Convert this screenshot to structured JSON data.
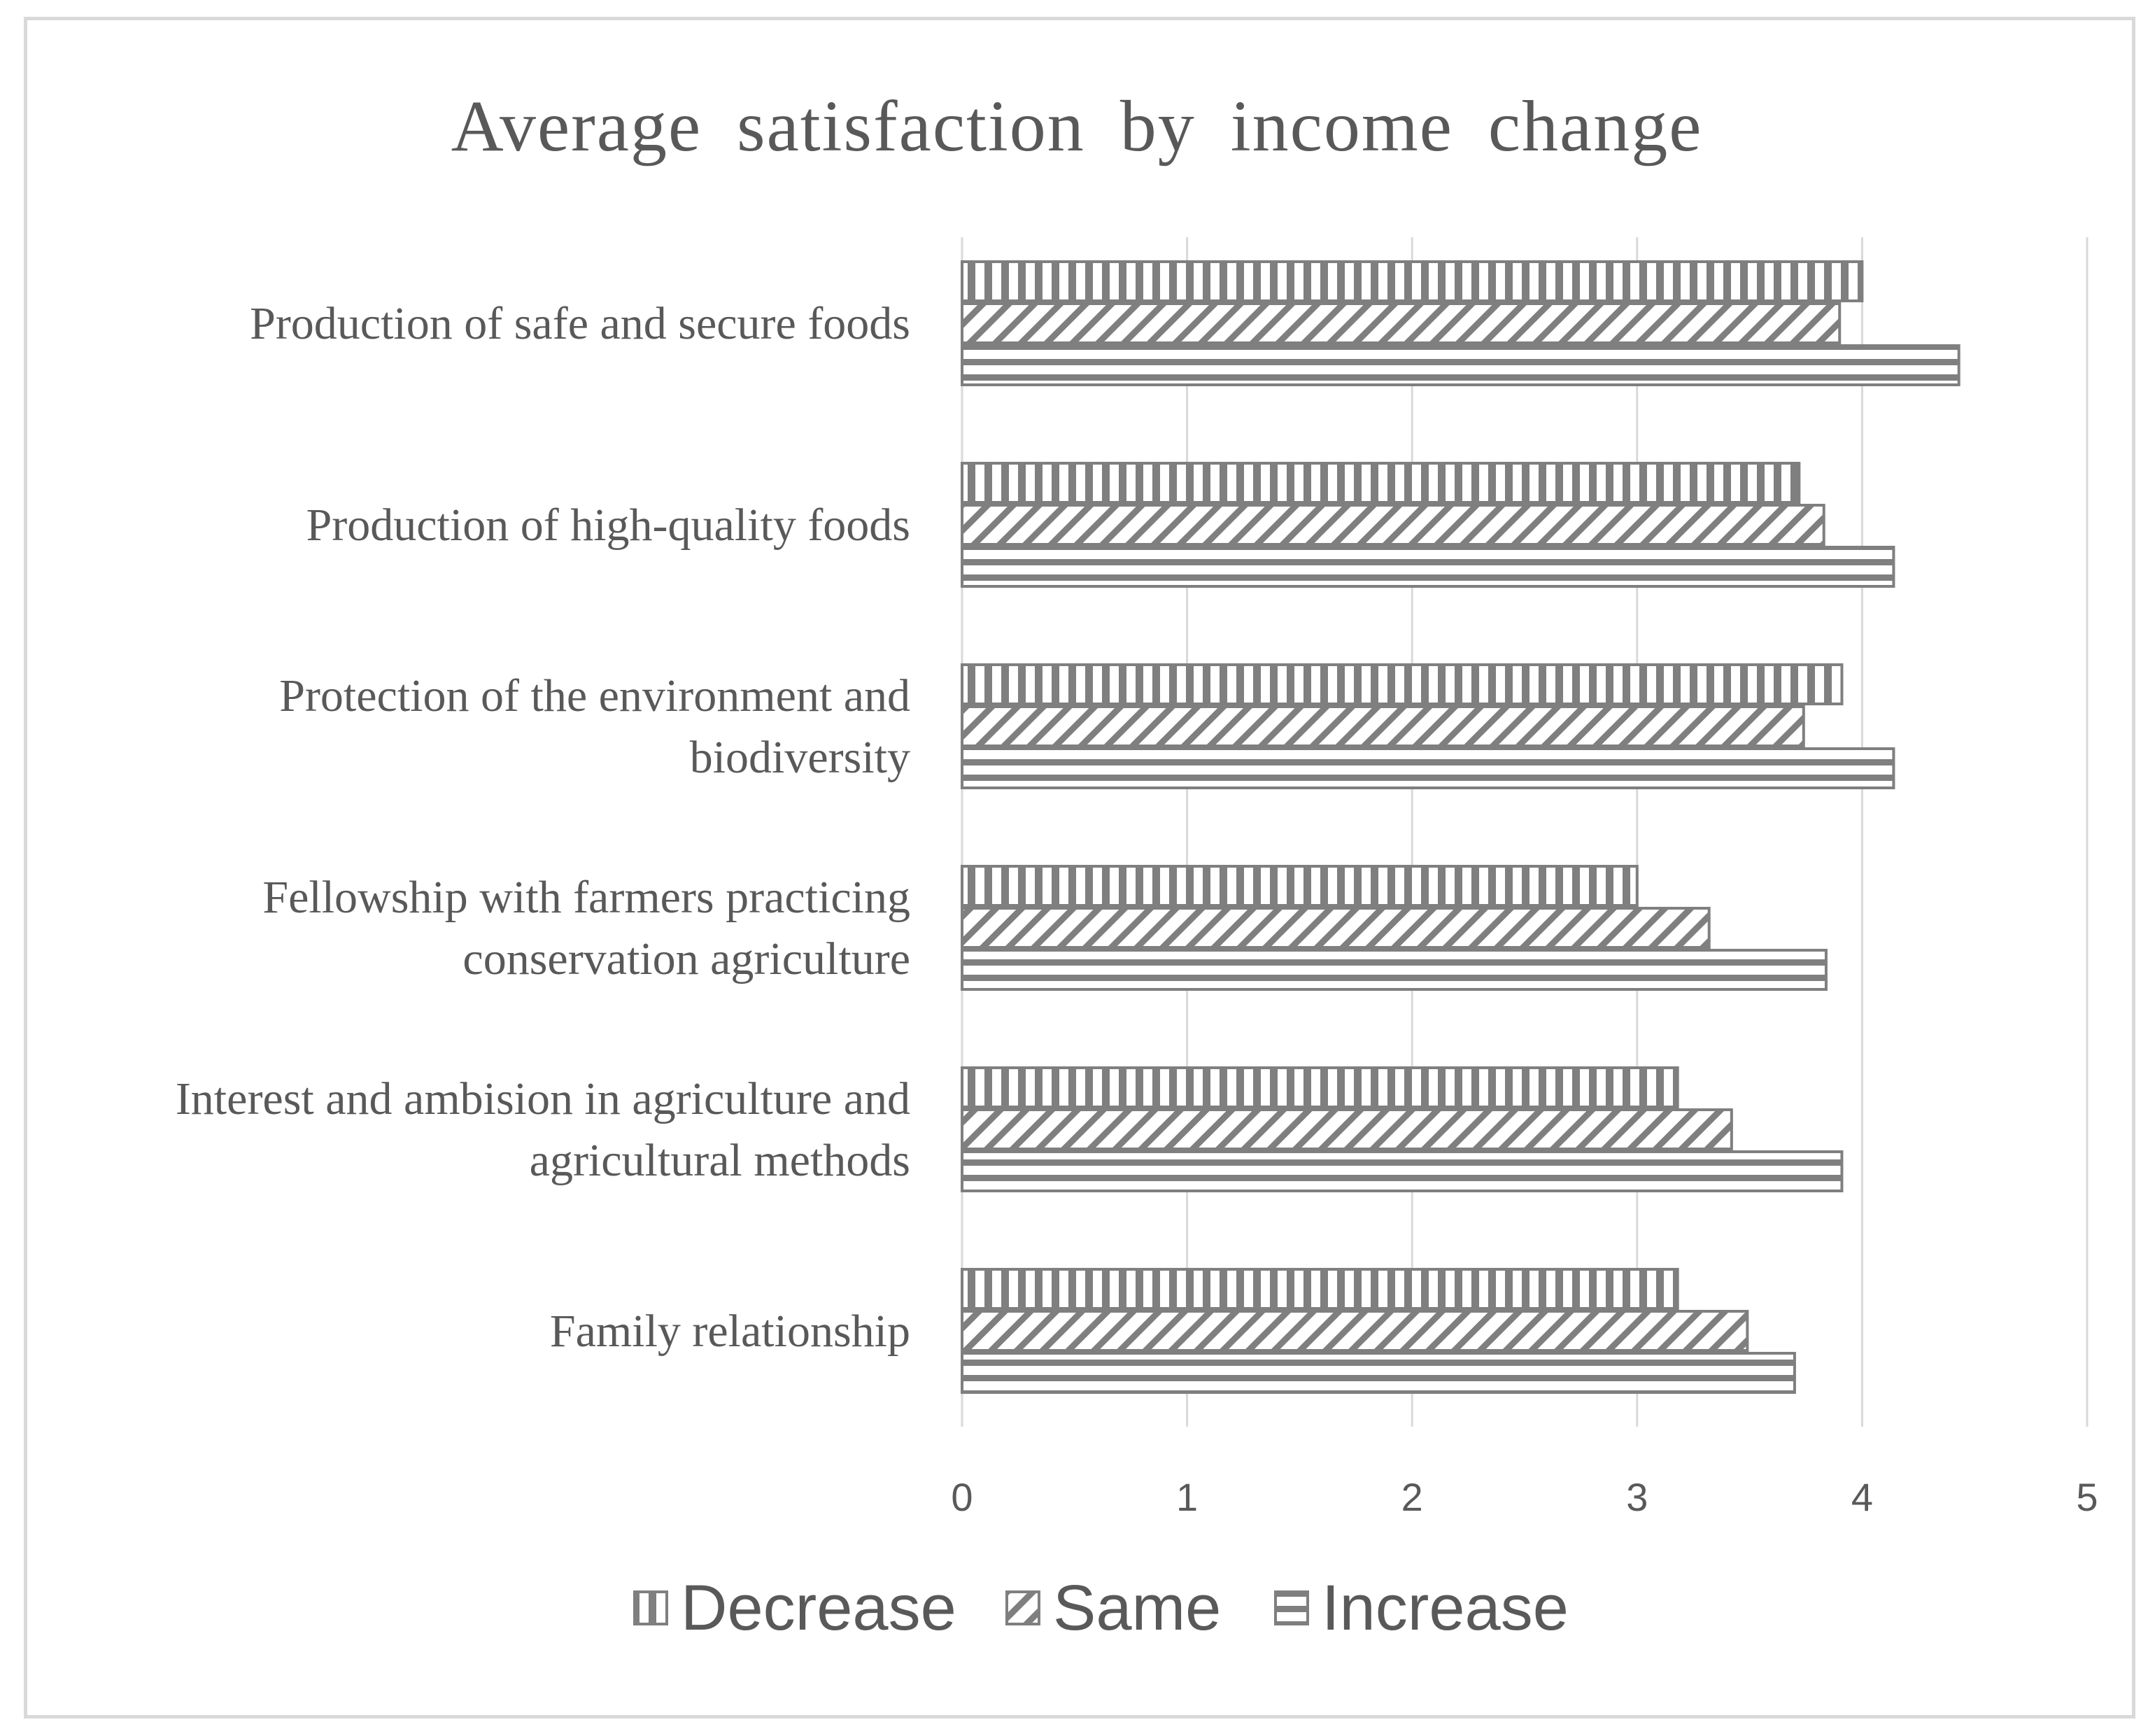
{
  "chart_data": {
    "type": "bar",
    "orientation": "horizontal",
    "title": "Average satisfaction by income change",
    "xlabel": "",
    "ylabel": "",
    "xlim": [
      0,
      5
    ],
    "x_ticks": [
      "0",
      "1",
      "2",
      "3",
      "4",
      "5"
    ],
    "grid": true,
    "legend_position": "bottom",
    "categories": [
      "Production of safe and secure foods",
      "Production of high-quality foods",
      "Protection of the environment and biodiversity",
      "Fellowship with farmers practicing conservation agriculture",
      "Interest and ambision in agriculture and agricultural methods",
      "Family relationship"
    ],
    "category_label_lines": [
      [
        "Production of safe and secure foods"
      ],
      [
        "Production of high-quality foods"
      ],
      [
        "Protection of the environment and",
        "biodiversity"
      ],
      [
        "Fellowship with farmers practicing",
        "conservation agriculture"
      ],
      [
        "Interest and ambision in agriculture and",
        "agricultural methods"
      ],
      [
        "Family relationship"
      ]
    ],
    "series": [
      {
        "name": "Decrease",
        "pattern": "vertical-stripes",
        "values": [
          4.0,
          3.72,
          3.91,
          3.0,
          3.18,
          3.18
        ]
      },
      {
        "name": "Same",
        "pattern": "diagonal-hatch",
        "values": [
          3.9,
          3.83,
          3.74,
          3.32,
          3.42,
          3.49
        ]
      },
      {
        "name": "Increase",
        "pattern": "horizontal-stripes",
        "values": [
          4.43,
          4.14,
          4.14,
          3.84,
          3.91,
          3.7
        ]
      }
    ],
    "colors": {
      "bar_stroke": "#7f7f7f",
      "grid": "#d9d9d9",
      "text": "#595959",
      "frame": "#d9d9d9"
    }
  }
}
